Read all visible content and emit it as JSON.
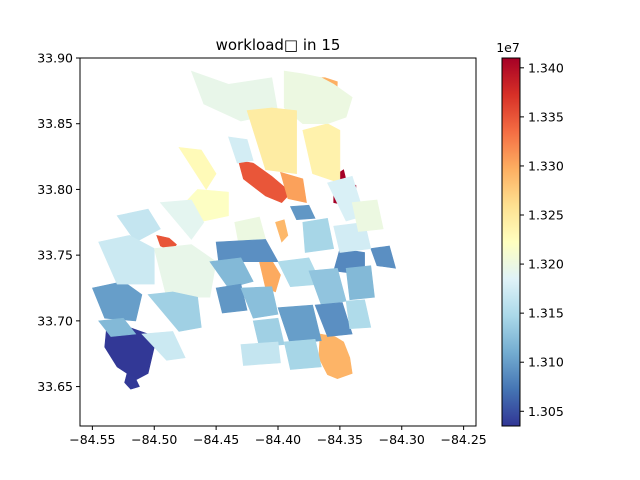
{
  "chart_data": {
    "type": "map",
    "title": "workload□ in 15",
    "xlim": [
      -84.56,
      -84.24
    ],
    "ylim": [
      33.62,
      33.9
    ],
    "x_ticks": [
      -84.55,
      -84.5,
      -84.45,
      -84.4,
      -84.35,
      -84.3,
      -84.25
    ],
    "x_tick_labels": [
      "−84.55",
      "−84.50",
      "−84.45",
      "−84.40",
      "−84.35",
      "−84.30",
      "−84.25"
    ],
    "y_ticks": [
      33.65,
      33.7,
      33.75,
      33.8,
      33.85,
      33.9
    ],
    "y_tick_labels": [
      "33.65",
      "33.70",
      "33.75",
      "33.80",
      "33.85",
      "33.90"
    ],
    "colorbar": {
      "colormap": "RdYlBu_r",
      "range": [
        13035000,
        13410000
      ],
      "offset_label": "1e7",
      "ticks": [
        1.305,
        1.31,
        1.315,
        1.32,
        1.325,
        1.33,
        1.335,
        1.34
      ],
      "tick_labels": [
        "1.305",
        "1.310",
        "1.315",
        "1.320",
        "1.325",
        "1.330",
        "1.335",
        "1.340"
      ],
      "stops": [
        "#313695",
        "#4575b4",
        "#74add1",
        "#abd9e9",
        "#e0f3f8",
        "#ffffbf",
        "#fee090",
        "#fdae61",
        "#f46d43",
        "#d73027",
        "#a50026"
      ]
    },
    "regions": [
      {
        "x": [
          -84.538,
          -84.52,
          -84.505,
          -84.5,
          -84.505,
          -84.515,
          -84.512,
          -84.522,
          -84.53,
          -84.54,
          -84.538
        ],
        "y": [
          33.7,
          33.695,
          33.69,
          33.68,
          33.66,
          33.655,
          33.65,
          33.66,
          33.665,
          33.68,
          33.7
        ],
        "value": 13036000
      },
      {
        "x": [
          -84.522,
          -84.516,
          -84.512,
          -84.519,
          -84.524,
          -84.522
        ],
        "y": [
          33.66,
          33.658,
          33.65,
          33.648,
          33.653,
          33.66
        ],
        "value": 13037000
      },
      {
        "x": [
          -84.366,
          -84.354,
          -84.347,
          -84.342,
          -84.34,
          -84.352,
          -84.36,
          -84.367,
          -84.366
        ],
        "y": [
          33.69,
          33.688,
          33.684,
          33.672,
          33.66,
          33.656,
          33.659,
          33.672,
          33.69
        ],
        "value": 13293000
      },
      {
        "x": [
          -84.355,
          -84.347,
          -84.345,
          -84.337,
          -84.338,
          -84.345,
          -84.355,
          -84.355
        ],
        "y": [
          33.81,
          33.815,
          33.807,
          33.803,
          33.79,
          33.788,
          33.79,
          33.81
        ],
        "value": 13410000
      },
      {
        "x": [
          -84.373,
          -84.362,
          -84.352,
          -84.353,
          -84.362,
          -84.372,
          -84.373
        ],
        "y": [
          33.885,
          33.885,
          33.882,
          33.863,
          33.858,
          33.86,
          33.885
        ],
        "value": 13297000
      },
      {
        "x": [
          -84.432,
          -84.42,
          -84.405,
          -84.395,
          -84.39,
          -84.397,
          -84.41,
          -84.428,
          -84.432
        ],
        "y": [
          33.822,
          33.82,
          33.81,
          33.802,
          33.797,
          33.79,
          33.795,
          33.808,
          33.822
        ],
        "value": 13349000
      },
      {
        "x": [
          -84.498,
          -84.488,
          -84.482,
          -84.486,
          -84.495,
          -84.498
        ],
        "y": [
          33.765,
          33.763,
          33.758,
          33.753,
          33.757,
          33.765
        ],
        "value": 13350000
      },
      {
        "x": [
          -84.415,
          -84.405,
          -84.398,
          -84.402,
          -84.41,
          -84.415
        ],
        "y": [
          33.745,
          33.746,
          33.735,
          33.722,
          33.725,
          33.745
        ],
        "value": 13300000
      },
      {
        "x": [
          -84.402,
          -84.395,
          -84.392,
          -84.397,
          -84.402
        ],
        "y": [
          33.775,
          33.777,
          33.765,
          33.76,
          33.775
        ],
        "value": 13290000
      },
      {
        "x": [
          -84.398,
          -84.38,
          -84.377,
          -84.392,
          -84.398
        ],
        "y": [
          33.813,
          33.808,
          33.79,
          33.793,
          33.813
        ],
        "value": 13305000
      },
      {
        "x": [
          -84.38,
          -84.36,
          -84.35,
          -84.35,
          -84.372,
          -84.38
        ],
        "y": [
          33.845,
          33.85,
          33.845,
          33.805,
          33.812,
          33.845
        ],
        "value": 13238000
      },
      {
        "x": [
          -84.395,
          -84.38,
          -84.365,
          -84.355,
          -84.34,
          -84.345,
          -84.36,
          -84.38,
          -84.395,
          -84.395
        ],
        "y": [
          33.89,
          33.888,
          33.885,
          33.88,
          33.87,
          33.855,
          33.85,
          33.85,
          33.862,
          33.89
        ],
        "value": 13200000
      },
      {
        "x": [
          -84.47,
          -84.44,
          -84.405,
          -84.4,
          -84.43,
          -84.46,
          -84.47
        ],
        "y": [
          33.89,
          33.88,
          33.885,
          33.858,
          33.852,
          33.865,
          33.89
        ],
        "value": 13195000
      },
      {
        "x": [
          -84.44,
          -84.425,
          -84.42,
          -84.433,
          -84.44
        ],
        "y": [
          33.84,
          33.838,
          33.822,
          33.82,
          33.84
        ],
        "value": 13176000
      },
      {
        "x": [
          -84.425,
          -84.405,
          -84.385,
          -84.385,
          -84.41,
          -84.425
        ],
        "y": [
          33.86,
          33.862,
          33.86,
          33.812,
          33.815,
          33.86
        ],
        "value": 13245000
      },
      {
        "x": [
          -84.48,
          -84.462,
          -84.45,
          -84.458,
          -84.48
        ],
        "y": [
          33.832,
          33.83,
          33.812,
          33.8,
          33.832
        ],
        "value": 13228000
      },
      {
        "x": [
          -84.475,
          -84.465,
          -84.44,
          -84.44,
          -84.46,
          -84.475
        ],
        "y": [
          33.79,
          33.8,
          33.798,
          33.78,
          33.776,
          33.79
        ],
        "value": 13220000
      },
      {
        "x": [
          -84.495,
          -84.47,
          -84.46,
          -84.47,
          -84.495
        ],
        "y": [
          33.79,
          33.792,
          33.775,
          33.762,
          33.79
        ],
        "value": 13190000
      },
      {
        "x": [
          -84.435,
          -84.415,
          -84.41,
          -84.432,
          -84.435
        ],
        "y": [
          33.775,
          33.779,
          33.762,
          33.76,
          33.775
        ],
        "value": 13200000
      },
      {
        "x": [
          -84.45,
          -84.41,
          -84.4,
          -84.448,
          -84.45
        ],
        "y": [
          33.76,
          33.762,
          33.745,
          33.745,
          33.76
        ],
        "value": 13090000
      },
      {
        "x": [
          -84.39,
          -84.375,
          -84.37,
          -84.385,
          -84.39
        ],
        "y": [
          33.787,
          33.788,
          33.778,
          33.777,
          33.787
        ],
        "value": 13095000
      },
      {
        "x": [
          -84.35,
          -84.33,
          -84.33,
          -84.355,
          -84.35
        ],
        "y": [
          33.755,
          33.752,
          33.735,
          33.738,
          33.755
        ],
        "value": 13085000
      },
      {
        "x": [
          -84.325,
          -84.31,
          -84.305,
          -84.32,
          -84.325
        ],
        "y": [
          33.755,
          33.757,
          33.74,
          33.742,
          33.755
        ],
        "value": 13090000
      },
      {
        "x": [
          -84.38,
          -84.36,
          -84.355,
          -84.378,
          -84.38
        ],
        "y": [
          33.775,
          33.778,
          33.755,
          33.752,
          33.775
        ],
        "value": 13145000
      },
      {
        "x": [
          -84.355,
          -84.33,
          -84.325,
          -84.35,
          -84.355
        ],
        "y": [
          33.772,
          33.775,
          33.755,
          33.752,
          33.772
        ],
        "value": 13175000
      },
      {
        "x": [
          -84.53,
          -84.505,
          -84.495,
          -84.515,
          -84.53
        ],
        "y": [
          33.78,
          33.785,
          33.77,
          33.76,
          33.78
        ],
        "value": 13165000
      },
      {
        "x": [
          -84.55,
          -84.525,
          -84.51,
          -84.515,
          -84.54,
          -84.55
        ],
        "y": [
          33.725,
          33.73,
          33.72,
          33.7,
          33.702,
          33.725
        ],
        "value": 13100000
      },
      {
        "x": [
          -84.545,
          -84.52,
          -84.5,
          -84.5,
          -84.53,
          -84.545
        ],
        "y": [
          33.76,
          33.765,
          33.755,
          33.728,
          33.728,
          33.76
        ],
        "value": 13170000
      },
      {
        "x": [
          -84.5,
          -84.47,
          -84.45,
          -84.455,
          -84.49,
          -84.5
        ],
        "y": [
          33.755,
          33.758,
          33.745,
          33.718,
          33.718,
          33.755
        ],
        "value": 13195000
      },
      {
        "x": [
          -84.505,
          -84.485,
          -84.465,
          -84.462,
          -84.48,
          -84.505
        ],
        "y": [
          33.72,
          33.722,
          33.718,
          33.695,
          33.692,
          33.72
        ],
        "value": 13140000
      },
      {
        "x": [
          -84.51,
          -84.485,
          -84.475,
          -84.49,
          -84.51
        ],
        "y": [
          33.69,
          33.692,
          33.672,
          33.67,
          33.69
        ],
        "value": 13170000
      },
      {
        "x": [
          -84.455,
          -84.43,
          -84.42,
          -84.44,
          -84.455
        ],
        "y": [
          33.745,
          33.748,
          33.73,
          33.725,
          33.745
        ],
        "value": 13120000
      },
      {
        "x": [
          -84.45,
          -84.43,
          -84.425,
          -84.445,
          -84.45
        ],
        "y": [
          33.725,
          33.728,
          33.708,
          33.706,
          33.725
        ],
        "value": 13095000
      },
      {
        "x": [
          -84.43,
          -84.405,
          -84.4,
          -84.42,
          -84.43
        ],
        "y": [
          33.725,
          33.726,
          33.705,
          33.702,
          33.725
        ],
        "value": 13125000
      },
      {
        "x": [
          -84.4,
          -84.375,
          -84.365,
          -84.39,
          -84.4
        ],
        "y": [
          33.745,
          33.748,
          33.728,
          33.726,
          33.745
        ],
        "value": 13150000
      },
      {
        "x": [
          -84.375,
          -84.352,
          -84.345,
          -84.365,
          -84.375
        ],
        "y": [
          33.738,
          33.74,
          33.715,
          33.712,
          33.738
        ],
        "value": 13130000
      },
      {
        "x": [
          -84.42,
          -84.4,
          -84.395,
          -84.415,
          -84.42
        ],
        "y": [
          33.7,
          33.702,
          33.682,
          33.68,
          33.7
        ],
        "value": 13140000
      },
      {
        "x": [
          -84.4,
          -84.372,
          -84.365,
          -84.39,
          -84.4
        ],
        "y": [
          33.71,
          33.712,
          33.685,
          33.682,
          33.71
        ],
        "value": 13100000
      },
      {
        "x": [
          -84.43,
          -84.4,
          -84.398,
          -84.428,
          -84.43
        ],
        "y": [
          33.682,
          33.684,
          33.668,
          33.666,
          33.682
        ],
        "value": 13165000
      },
      {
        "x": [
          -84.395,
          -84.37,
          -84.365,
          -84.39,
          -84.395
        ],
        "y": [
          33.684,
          33.686,
          33.665,
          33.663,
          33.684
        ],
        "value": 13145000
      },
      {
        "x": [
          -84.37,
          -84.348,
          -84.34,
          -84.36,
          -84.37
        ],
        "y": [
          33.712,
          33.714,
          33.69,
          33.688,
          33.712
        ],
        "value": 13090000
      },
      {
        "x": [
          -84.345,
          -84.325,
          -84.322,
          -84.342,
          -84.345
        ],
        "y": [
          33.74,
          33.742,
          33.718,
          33.716,
          33.74
        ],
        "value": 13120000
      },
      {
        "x": [
          -84.345,
          -84.33,
          -84.325,
          -84.342,
          -84.345
        ],
        "y": [
          33.715,
          33.716,
          33.695,
          33.694,
          33.715
        ],
        "value": 13150000
      },
      {
        "x": [
          -84.36,
          -84.34,
          -84.33,
          -84.345,
          -84.36
        ],
        "y": [
          33.805,
          33.81,
          33.78,
          33.776,
          33.805
        ],
        "value": 13180000
      },
      {
        "x": [
          -84.34,
          -84.32,
          -84.315,
          -84.335,
          -84.34
        ],
        "y": [
          33.79,
          33.792,
          33.77,
          33.768,
          33.79
        ],
        "value": 13200000
      },
      {
        "x": [
          -84.545,
          -84.525,
          -84.515,
          -84.535,
          -84.545
        ],
        "y": [
          33.7,
          33.702,
          33.69,
          33.688,
          33.7
        ],
        "value": 13120000
      }
    ]
  }
}
